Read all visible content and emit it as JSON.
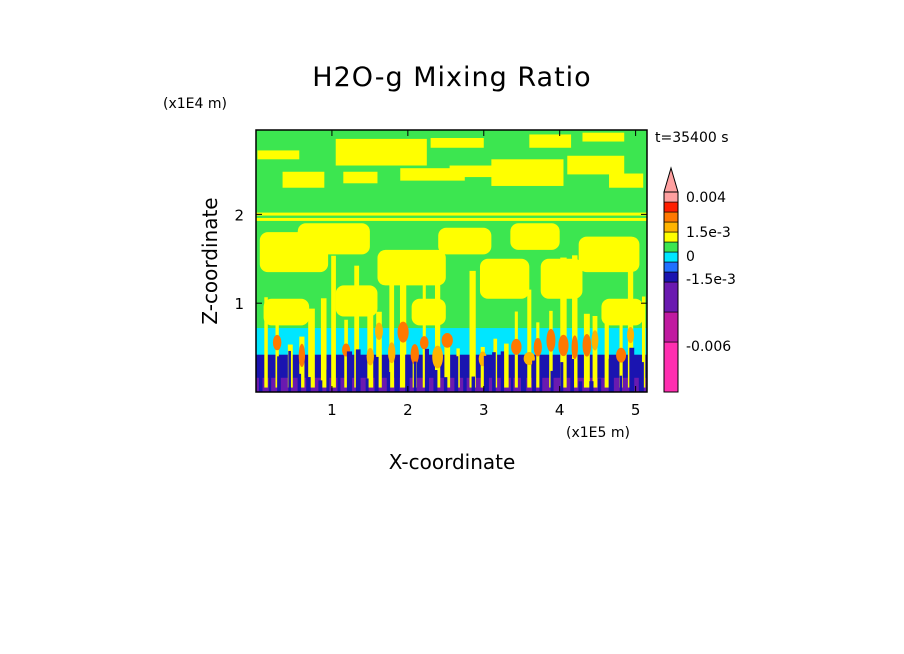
{
  "chart_data": {
    "type": "heatmap",
    "title": "H2O-g Mixing Ratio",
    "xlabel": "X-coordinate",
    "ylabel": "Z-coordinate",
    "x_units": "(x1E5 m)",
    "y_units": "(x1E4 m)",
    "time_label": "t=35400 s",
    "xlim": [
      0,
      5.15
    ],
    "ylim": [
      0,
      2.95
    ],
    "x_ticks": [
      1,
      2,
      3,
      4,
      5
    ],
    "y_ticks": [
      1,
      2
    ],
    "grid": false,
    "legend_position": "right colorbar",
    "colorbar": {
      "colors": [
        "#ff2fb0",
        "#c01aa0",
        "#6a1ab0",
        "#1a14b0",
        "#2070ff",
        "#00e6ff",
        "#3ce650",
        "#ffff00",
        "#ffb400",
        "#ff7800",
        "#ff1e00",
        "#ffa0a0"
      ],
      "tick_labels": [
        "0.004",
        "1.5e-3",
        "0",
        "-1.5e-3",
        "-0.006"
      ]
    },
    "field_colors": {
      "background": "#3ce650",
      "moist": "#ffff00",
      "dry_layer": "#00e6ff",
      "very_dry": "#1a14b0",
      "driest": "#6a1ab0",
      "plume_core": "#ffb400",
      "plume_peak": "#ff7800"
    }
  }
}
